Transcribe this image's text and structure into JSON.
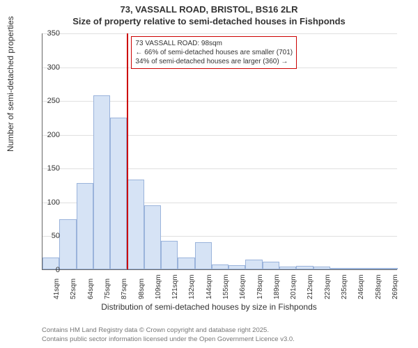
{
  "title_line1": "73, VASSALL ROAD, BRISTOL, BS16 2LR",
  "title_line2": "Size of property relative to semi-detached houses in Fishponds",
  "y_axis_label": "Number of semi-detached properties",
  "x_axis_label": "Distribution of semi-detached houses by size in Fishponds",
  "footer_line1": "Contains HM Land Registry data © Crown copyright and database right 2025.",
  "footer_line2": "Contains public sector information licensed under the Open Government Licence v3.0.",
  "annotation_line1": "73 VASSALL ROAD: 98sqm",
  "annotation_line2": "← 66% of semi-detached houses are smaller (701)",
  "annotation_line3": "34% of semi-detached houses are larger (360) →",
  "chart": {
    "type": "histogram",
    "bar_fill": "#d6e3f5",
    "bar_border": "#9ab3db",
    "marker_color": "#cc0000",
    "grid_color": "#e0e0e0",
    "background_color": "#ffffff",
    "y_max": 350,
    "y_ticks": [
      0,
      50,
      100,
      150,
      200,
      250,
      300,
      350
    ],
    "x_labels": [
      "41sqm",
      "52sqm",
      "64sqm",
      "75sqm",
      "87sqm",
      "98sqm",
      "109sqm",
      "121sqm",
      "132sqm",
      "144sqm",
      "155sqm",
      "166sqm",
      "178sqm",
      "189sqm",
      "201sqm",
      "212sqm",
      "223sqm",
      "235sqm",
      "246sqm",
      "258sqm",
      "269sqm"
    ],
    "values": [
      18,
      74,
      128,
      257,
      224,
      133,
      95,
      42,
      18,
      40,
      7,
      6,
      14,
      11,
      4,
      5,
      4,
      2,
      0,
      0,
      2
    ],
    "marker_index": 5,
    "title_fontsize": 13,
    "label_fontsize": 12,
    "tick_fontsize": 11
  }
}
